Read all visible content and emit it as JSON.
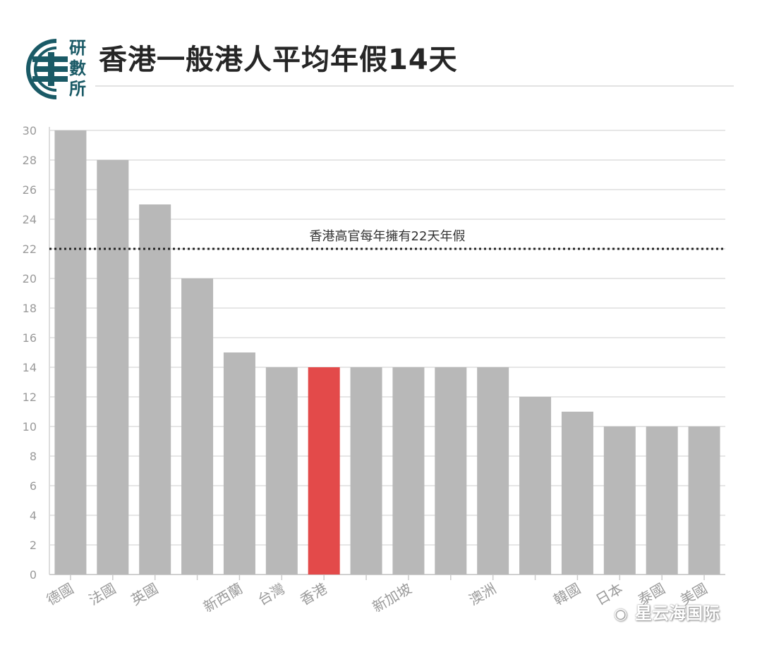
{
  "header": {
    "title": "香港一般港人平均年假14天",
    "logo_chars": [
      "研",
      "數",
      "所"
    ]
  },
  "watermark": {
    "icon": "wechat-icon",
    "text": "星云海国际"
  },
  "colors": {
    "bar": "#b8b8b8",
    "highlight": "#e34a4a",
    "logo": "#1a5a66",
    "reference_line": "#222222",
    "grid": "#e6e6e6"
  },
  "chart_data": {
    "type": "bar",
    "title": "香港一般港人平均年假14天",
    "xlabel": "",
    "ylabel": "",
    "categories": [
      "德國",
      "法國",
      "英國",
      "",
      "新西蘭",
      "台灣",
      "香港",
      "",
      "新加坡",
      "",
      "澳洲",
      "",
      "韓國",
      "日本",
      "泰國",
      "美國"
    ],
    "values": [
      30,
      28,
      25,
      20,
      15,
      14,
      14,
      14,
      14,
      14,
      14,
      12,
      11,
      10,
      10,
      10
    ],
    "highlight_index": 6,
    "ylim": [
      0,
      30
    ],
    "yticks": [
      0,
      2,
      4,
      6,
      8,
      10,
      12,
      14,
      16,
      18,
      20,
      22,
      24,
      26,
      28,
      30
    ],
    "grid": true,
    "reference_line": {
      "value": 22,
      "label": "香港高官每年擁有22天年假",
      "style": "dotted"
    }
  }
}
